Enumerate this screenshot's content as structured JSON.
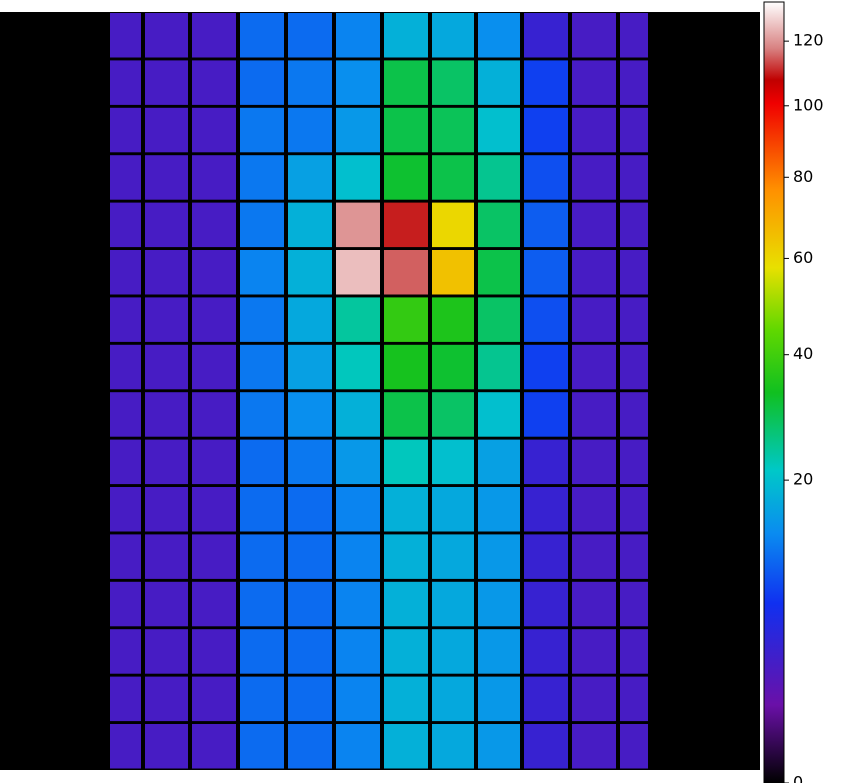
{
  "chart_data": {
    "type": "heatmap",
    "scale": "sqrt",
    "clim": [
      0,
      133
    ],
    "cticks": [
      0,
      20,
      40,
      60,
      80,
      100,
      120
    ],
    "colormap": [
      [
        0,
        "#000000"
      ],
      [
        0.1,
        "#6a10a8"
      ],
      [
        0.23,
        "#1030f0"
      ],
      [
        0.32,
        "#0a8cf0"
      ],
      [
        0.4,
        "#00c8c8"
      ],
      [
        0.5,
        "#10c020"
      ],
      [
        0.58,
        "#60d800"
      ],
      [
        0.66,
        "#e8e000"
      ],
      [
        0.76,
        "#ff9000"
      ],
      [
        0.87,
        "#f00000"
      ],
      [
        0.9,
        "#c00000"
      ],
      [
        0.94,
        "#d88080"
      ],
      [
        1,
        "#ffffff"
      ]
    ],
    "values": [
      [
        3,
        3,
        3,
        11,
        11,
        13,
        18,
        17,
        14,
        4,
        3,
        3
      ],
      [
        3,
        3,
        3,
        11,
        12,
        14,
        30,
        28,
        18,
        8,
        3,
        3
      ],
      [
        3,
        3,
        3,
        12,
        12,
        15,
        30,
        29,
        20,
        8,
        3,
        3
      ],
      [
        3,
        3,
        3,
        12,
        16,
        20,
        32,
        30,
        25,
        9,
        3,
        3
      ],
      [
        3,
        3,
        3,
        12,
        18,
        120,
        110,
        60,
        28,
        10,
        3,
        3
      ],
      [
        3,
        3,
        3,
        13,
        18,
        125,
        115,
        65,
        30,
        10,
        3,
        3
      ],
      [
        3,
        3,
        3,
        12,
        17,
        24,
        38,
        35,
        28,
        9,
        3,
        3
      ],
      [
        3,
        3,
        3,
        12,
        16,
        22,
        34,
        32,
        25,
        8,
        3,
        3
      ],
      [
        3,
        3,
        3,
        12,
        14,
        18,
        30,
        28,
        20,
        8,
        3,
        3
      ],
      [
        3,
        3,
        3,
        11,
        12,
        15,
        22,
        20,
        16,
        4,
        3,
        3
      ],
      [
        3,
        3,
        3,
        11,
        11,
        13,
        18,
        17,
        15,
        4,
        3,
        3
      ],
      [
        3,
        3,
        3,
        11,
        11,
        13,
        18,
        17,
        15,
        4,
        3,
        3
      ],
      [
        3,
        3,
        3,
        11,
        11,
        13,
        18,
        17,
        15,
        4,
        3,
        3
      ],
      [
        3,
        3,
        3,
        11,
        11,
        13,
        18,
        17,
        15,
        4,
        3,
        3
      ],
      [
        3,
        3,
        3,
        11,
        11,
        13,
        18,
        17,
        15,
        4,
        3,
        3
      ],
      [
        3,
        3,
        3,
        11,
        11,
        13,
        18,
        17,
        15,
        4,
        3,
        3
      ]
    ]
  }
}
